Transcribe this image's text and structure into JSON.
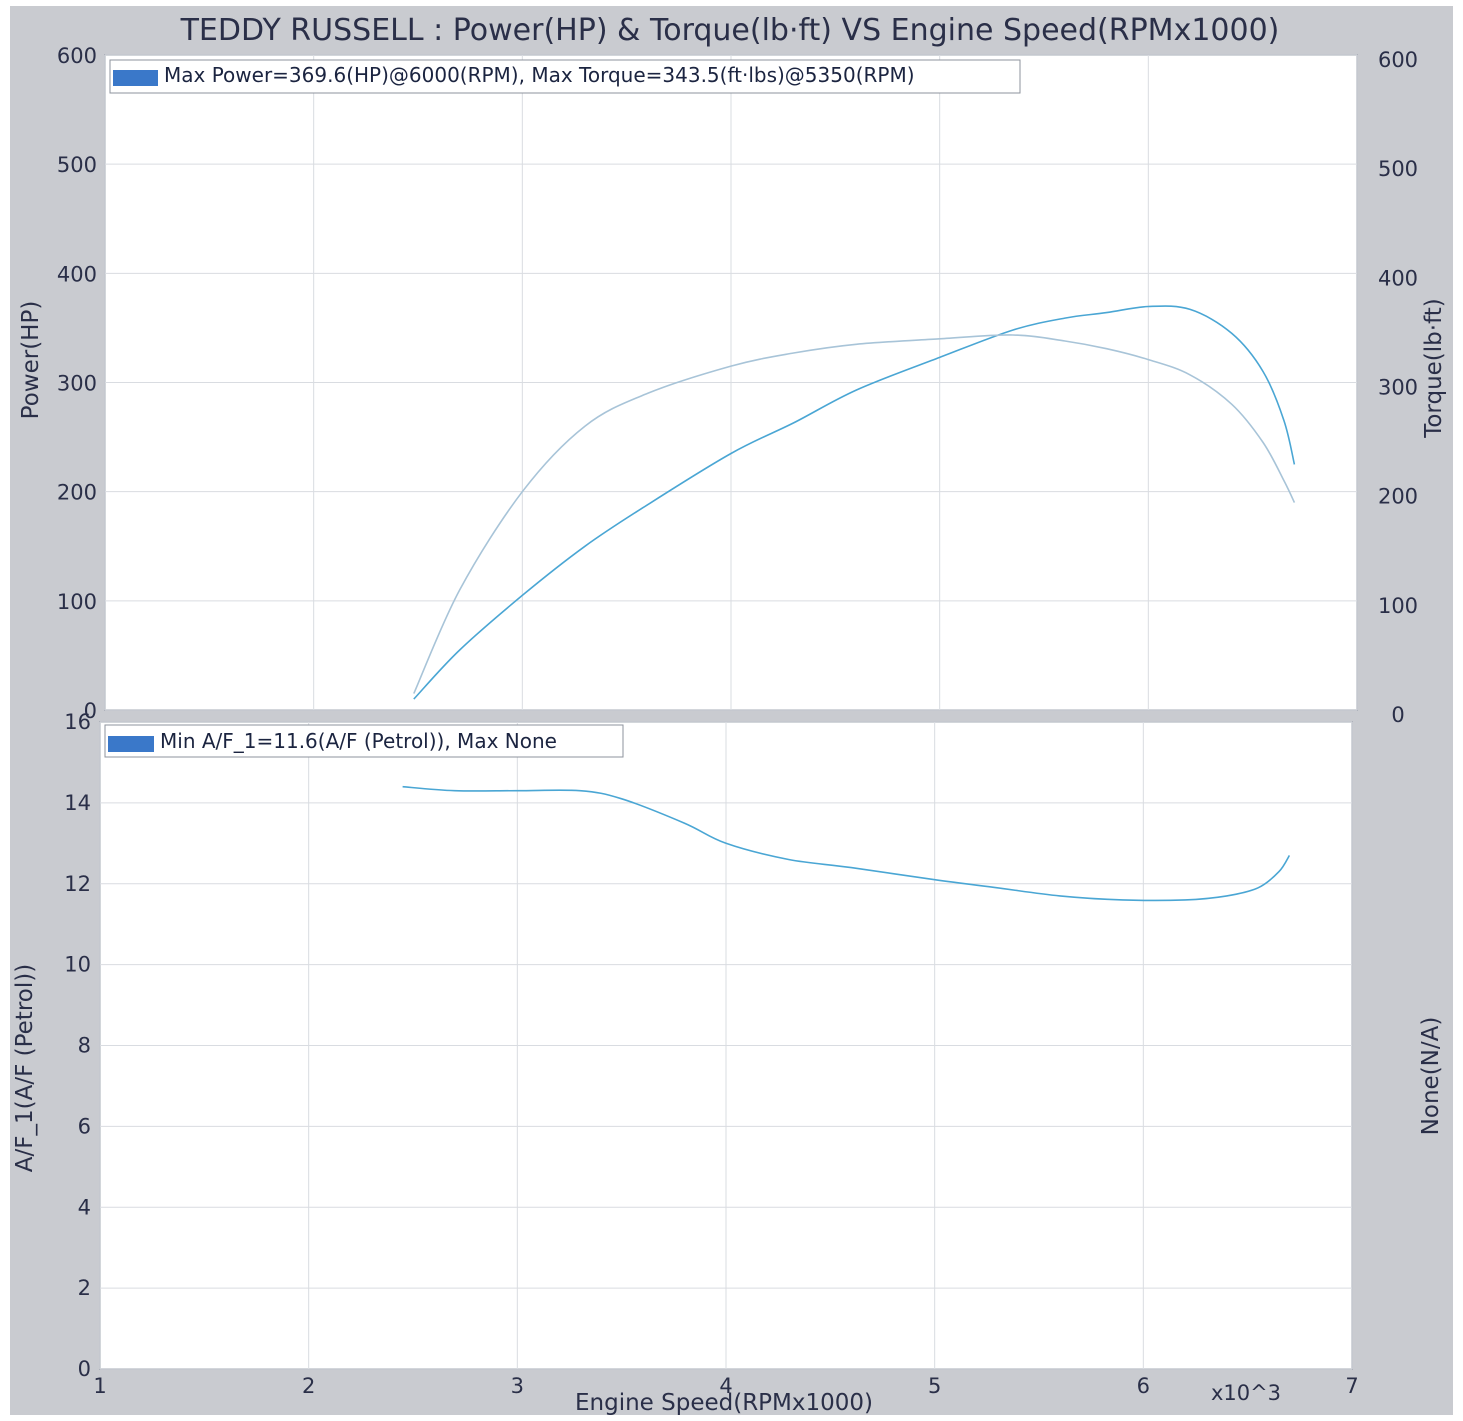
{
  "chart_data": [
    {
      "type": "line",
      "title": "TEDDY RUSSELL : Power(HP) & Torque(lb·ft) VS Engine Speed(RPMx1000)",
      "legend": "Max Power=369.6(HP)@6000(RPM), Max Torque=343.5(ft·lbs)@5350(RPM)",
      "legend_placement": "top-left",
      "xlim": [
        1,
        7
      ],
      "ylim": [
        0,
        600
      ],
      "y2lim": [
        0,
        600
      ],
      "ylabel": "Power(HP)",
      "y2label": "Torque(lb·ft)",
      "y_ticks": [
        "0",
        "100",
        "200",
        "300",
        "400",
        "500",
        "600"
      ],
      "y2_ticks": [
        "0",
        "100",
        "200",
        "300",
        "400",
        "500",
        "600"
      ],
      "grid": true,
      "series": [
        {
          "role": "power",
          "color": "#4aa6d4",
          "x": [
            2.48,
            2.7,
            3.0,
            3.3,
            3.6,
            4.0,
            4.3,
            4.6,
            5.0,
            5.35,
            5.6,
            5.8,
            6.0,
            6.2,
            6.4,
            6.55,
            6.65,
            6.7
          ],
          "y": [
            10,
            55,
            105,
            150,
            188,
            235,
            263,
            293,
            323,
            348,
            359,
            364,
            369.6,
            367,
            345,
            310,
            265,
            225
          ]
        },
        {
          "role": "torque",
          "color": "#a8c4d8",
          "x": [
            2.48,
            2.7,
            3.0,
            3.3,
            3.6,
            4.0,
            4.3,
            4.6,
            5.0,
            5.35,
            5.6,
            5.8,
            6.0,
            6.2,
            6.4,
            6.55,
            6.65,
            6.7
          ],
          "y": [
            15,
            110,
            200,
            260,
            290,
            315,
            327,
            335,
            340,
            343.5,
            338,
            331,
            321,
            307,
            280,
            245,
            210,
            190
          ]
        }
      ]
    },
    {
      "type": "line",
      "legend": "Min A/F_1=11.6(A/F (Petrol)), Max None",
      "legend_placement": "top-left",
      "xlabel": "Engine Speed(RPMx1000)",
      "x_ticks": [
        "1",
        "2",
        "3",
        "4",
        "5",
        "6",
        "7"
      ],
      "x_multiplier_label": "x10^3",
      "xlim": [
        1,
        7
      ],
      "ylim": [
        0,
        16
      ],
      "ylabel": "A/F_1(A/F (Petrol))",
      "y2label": "None(N/A)",
      "y_ticks": [
        "0",
        "2",
        "4",
        "6",
        "8",
        "10",
        "12",
        "14",
        "16"
      ],
      "grid": true,
      "series": [
        {
          "role": "af",
          "color": "#4aa6d4",
          "x": [
            2.45,
            2.7,
            3.0,
            3.3,
            3.5,
            3.8,
            4.0,
            4.3,
            4.6,
            5.0,
            5.3,
            5.6,
            5.9,
            6.2,
            6.4,
            6.55,
            6.65,
            6.7
          ],
          "y": [
            14.4,
            14.3,
            14.3,
            14.3,
            14.1,
            13.5,
            13.0,
            12.6,
            12.4,
            12.1,
            11.9,
            11.7,
            11.6,
            11.6,
            11.7,
            11.9,
            12.3,
            12.7
          ]
        }
      ]
    }
  ]
}
